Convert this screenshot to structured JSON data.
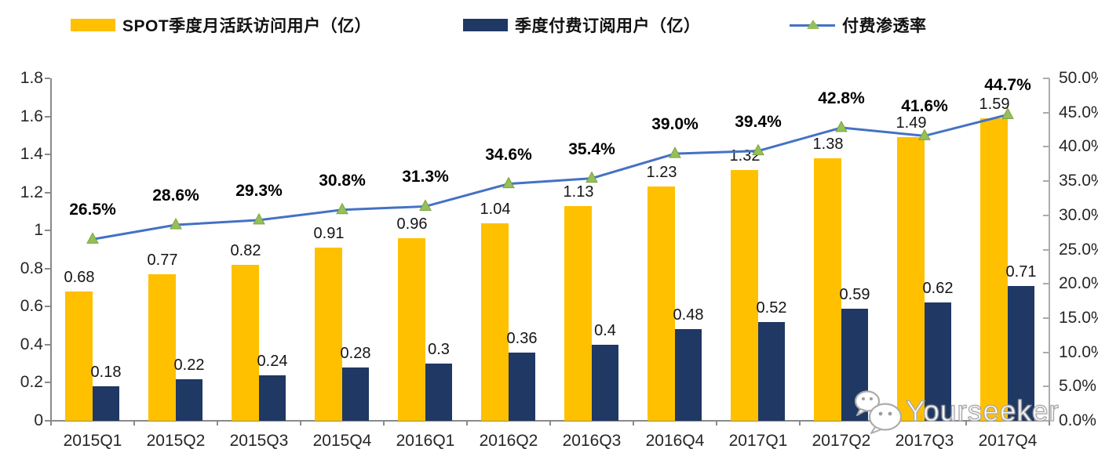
{
  "colors": {
    "mau_bar": "#FFC000",
    "sub_bar": "#1F3864",
    "line": "#4472C4",
    "marker": "#97BF59",
    "marker_edge": "#79A33E",
    "axis": "#8a8a8a",
    "axis_right": "#ababab"
  },
  "legend": {
    "items": [
      {
        "label": "SPOT季度月活跃访问用户（亿）",
        "swatch": "bar-yellow"
      },
      {
        "label": "季度付费订阅用户（亿）",
        "swatch": "bar-navy"
      },
      {
        "label": "付费渗透率",
        "swatch": "line-marker"
      }
    ]
  },
  "chart_data": {
    "type": "bar+line",
    "title": "",
    "categories": [
      "2015Q1",
      "2015Q2",
      "2015Q3",
      "2015Q4",
      "2016Q1",
      "2016Q2",
      "2016Q3",
      "2016Q4",
      "2017Q1",
      "2017Q2",
      "2017Q3",
      "2017Q4"
    ],
    "series": [
      {
        "name": "SPOT季度月活跃访问用户（亿）",
        "type": "bar",
        "axis": "left",
        "color": "#FFC000",
        "values": [
          0.68,
          0.77,
          0.82,
          0.91,
          0.96,
          1.04,
          1.13,
          1.23,
          1.32,
          1.38,
          1.49,
          1.59
        ],
        "labels": [
          "0.68",
          "0.77",
          "0.82",
          "0.91",
          "0.96",
          "1.04",
          "1.13",
          "1.23",
          "1.32",
          "1.38",
          "1.49",
          "1.59"
        ]
      },
      {
        "name": "季度付费订阅用户（亿）",
        "type": "bar",
        "axis": "left",
        "color": "#1F3864",
        "values": [
          0.18,
          0.22,
          0.24,
          0.28,
          0.3,
          0.36,
          0.4,
          0.48,
          0.52,
          0.59,
          0.62,
          0.71
        ],
        "labels": [
          "0.18",
          "0.22",
          "0.24",
          "0.28",
          "0.3",
          "0.36",
          "0.4",
          "0.48",
          "0.52",
          "0.59",
          "0.62",
          "0.71"
        ]
      },
      {
        "name": "付费渗透率",
        "type": "line",
        "axis": "right",
        "color": "#4472C4",
        "marker": "triangle",
        "marker_color": "#97BF59",
        "values": [
          26.5,
          28.6,
          29.3,
          30.8,
          31.3,
          34.6,
          35.4,
          39.0,
          39.4,
          42.8,
          41.6,
          44.7
        ],
        "labels": [
          "26.5%",
          "28.6%",
          "29.3%",
          "30.8%",
          "31.3%",
          "34.6%",
          "35.4%",
          "39.0%",
          "39.4%",
          "42.8%",
          "41.6%",
          "44.7%"
        ]
      }
    ],
    "left_axis": {
      "min": 0,
      "max": 1.8,
      "step": 0.2,
      "tick_labels": [
        "0",
        "0.2",
        "0.4",
        "0.6",
        "0.8",
        "1",
        "1.2",
        "1.4",
        "1.6",
        "1.8"
      ]
    },
    "right_axis": {
      "min": 0,
      "max": 50,
      "step": 5,
      "tick_labels": [
        "0.0%",
        "5.0%",
        "10.0%",
        "15.0%",
        "20.0%",
        "25.0%",
        "30.0%",
        "35.0%",
        "40.0%",
        "45.0%",
        "50.0%"
      ]
    },
    "grid": false,
    "legend_position": "top"
  },
  "watermark": {
    "text": "Yourseeker",
    "icon": "wechat-icon"
  }
}
